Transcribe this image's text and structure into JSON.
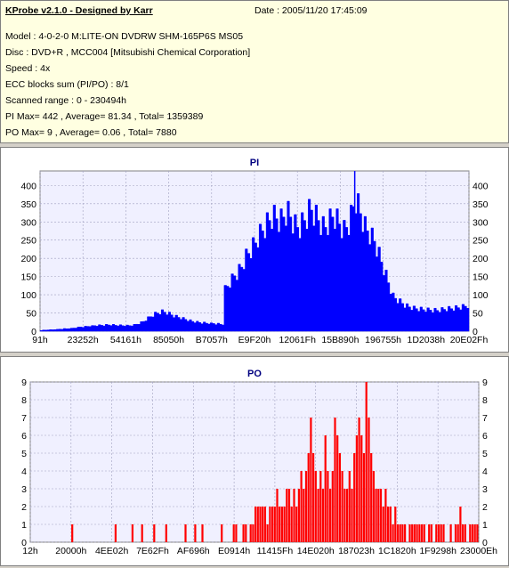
{
  "header": {
    "title": "KProbe v2.1.0 - Designed by Karr",
    "date": "Date : 2005/11/20 17:45:09",
    "lines": [
      "Model : 4-0-2-0 M:LITE-ON DVDRW SHM-165P6S MS05",
      "Disc : DVD+R , MCC004 [Mitsubishi Chemical Corporation]",
      "Speed : 4x",
      "ECC blocks sum (PI/PO) : 8/1",
      "Scanned range : 0 - 230494h",
      "PI Max= 442 , Average= 81.34 , Total= 1359389",
      "PO Max= 9 , Average= 0.06 , Total= 7880"
    ]
  },
  "colors": {
    "pi": "#0000ff",
    "po": "#ff0000",
    "plot_bg": "#f0f0ff",
    "grid": "#a0a0c0"
  },
  "chart_data": [
    {
      "type": "area",
      "title": "PI",
      "ylim": [
        0,
        440
      ],
      "yticks": [
        0,
        50,
        100,
        150,
        200,
        250,
        300,
        350,
        400
      ],
      "xticks": [
        "91h",
        "23252h",
        "54161h",
        "85050h",
        "B7057h",
        "E9F20h",
        "12061Fh",
        "15B890h",
        "196755h",
        "1D2038h",
        "20E02Fh"
      ],
      "max": 442,
      "series": [
        {
          "values": [
            2,
            3,
            3,
            4,
            4,
            4,
            5,
            5,
            6,
            6,
            7,
            7,
            8,
            8,
            9,
            10,
            11,
            12,
            12,
            13,
            14,
            15,
            15,
            16,
            16,
            17,
            17,
            17,
            18,
            18,
            18,
            18,
            17,
            17,
            17,
            16,
            16,
            16,
            16,
            17,
            18,
            20,
            22,
            25,
            28,
            33,
            38,
            42,
            46,
            50,
            52,
            54,
            56,
            55,
            53,
            50,
            47,
            44,
            42,
            40,
            38,
            36,
            34,
            32,
            30,
            28,
            27,
            26,
            25,
            24,
            24,
            23,
            23,
            22,
            22,
            21,
            21,
            20,
            20,
            120,
            130,
            140,
            150,
            160,
            165,
            175,
            185,
            200,
            215,
            225,
            235,
            245,
            255,
            270,
            280,
            290,
            300,
            310,
            320,
            330,
            330,
            325,
            320,
            320,
            330,
            340,
            340,
            330,
            315,
            305,
            300,
            300,
            310,
            320,
            330,
            345,
            350,
            340,
            330,
            320,
            310,
            300,
            300,
            310,
            320,
            330,
            330,
            320,
            310,
            300,
            290,
            300,
            310,
            330,
            360,
            380,
            360,
            340,
            320,
            300,
            290,
            280,
            270,
            260,
            240,
            220,
            200,
            180,
            160,
            140,
            120,
            100,
            95,
            90,
            85,
            80,
            75,
            72,
            70,
            68,
            66,
            65,
            64,
            63,
            62,
            62,
            61,
            61,
            60,
            60,
            60,
            61,
            62,
            63,
            64,
            65,
            65,
            66,
            67,
            68,
            69,
            70,
            72,
            74
          ]
        }
      ]
    },
    {
      "type": "bar",
      "title": "PO",
      "ylim": [
        0,
        9
      ],
      "yticks": [
        0,
        1,
        2,
        3,
        4,
        5,
        6,
        7,
        8,
        9
      ],
      "xticks": [
        "12h",
        "20000h",
        "4EE02h",
        "7E62Fh",
        "AF696h",
        "E0914h",
        "11415Fh",
        "14E020h",
        "187023h",
        "1C1820h",
        "1F9298h",
        "23000Eh"
      ],
      "max": 9,
      "series": [
        {
          "values": [
            0,
            0,
            0,
            0,
            0,
            0,
            0,
            0,
            0,
            0,
            0,
            0,
            0,
            0,
            0,
            0,
            0,
            1,
            0,
            0,
            0,
            0,
            0,
            0,
            0,
            0,
            0,
            0,
            0,
            0,
            0,
            0,
            0,
            0,
            0,
            1,
            0,
            0,
            0,
            0,
            0,
            0,
            1,
            0,
            0,
            0,
            1,
            0,
            0,
            0,
            0,
            1,
            0,
            0,
            0,
            0,
            1,
            0,
            0,
            0,
            0,
            0,
            0,
            0,
            1,
            0,
            0,
            0,
            1,
            0,
            0,
            1,
            0,
            0,
            0,
            0,
            0,
            0,
            0,
            1,
            0,
            0,
            0,
            0,
            1,
            1,
            0,
            0,
            1,
            1,
            0,
            1,
            1,
            2,
            2,
            2,
            2,
            2,
            1,
            2,
            2,
            2,
            3,
            2,
            2,
            2,
            3,
            3,
            2,
            3,
            2,
            3,
            4,
            3,
            4,
            5,
            7,
            5,
            4,
            3,
            4,
            3,
            6,
            4,
            3,
            4,
            7,
            6,
            5,
            4,
            3,
            3,
            4,
            3,
            5,
            6,
            7,
            6,
            5,
            9,
            7,
            5,
            4,
            3,
            3,
            3,
            2,
            3,
            2,
            2,
            1,
            2,
            1,
            1,
            1,
            1,
            0,
            1,
            1,
            1,
            1,
            1,
            1,
            1,
            0,
            1,
            1,
            0,
            1,
            1,
            1,
            1,
            0,
            0,
            1,
            0,
            1,
            1,
            2,
            1,
            1,
            0,
            1,
            1,
            1,
            1
          ]
        }
      ]
    }
  ]
}
